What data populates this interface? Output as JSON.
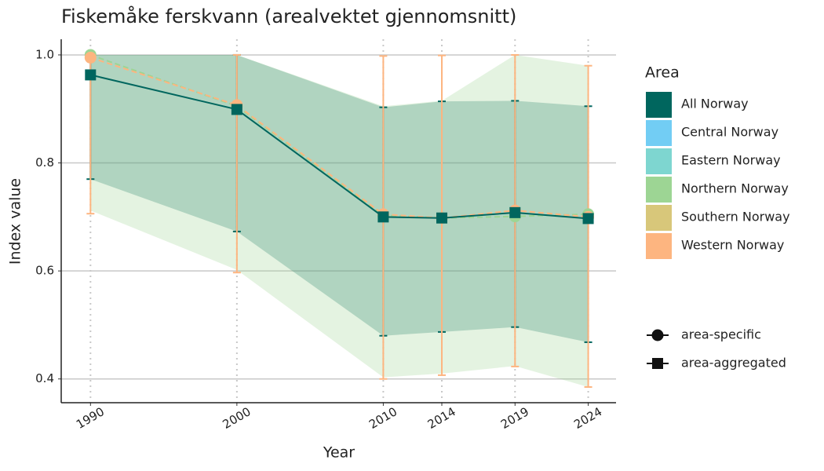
{
  "chart_data": {
    "type": "line",
    "title": "Fiskemåke ferskvann (arealvektet gjennomsnitt)",
    "x_label": "Year",
    "y_label": "Index value",
    "x": [
      1990,
      2000,
      2010,
      2014,
      2019,
      2024
    ],
    "xlim": [
      1988,
      2025.9
    ],
    "xticks": [
      1990,
      2000,
      2010,
      2014,
      2019,
      2024
    ],
    "ylim": [
      0.356,
      1.029
    ],
    "yticks": [
      {
        "value": 0.4,
        "label": "0.4"
      },
      {
        "value": 0.6,
        "label": "0.6"
      },
      {
        "value": 0.8,
        "label": "0.8"
      },
      {
        "value": 1.0,
        "label": "1.0"
      }
    ],
    "grid": true,
    "legend_title": "Area",
    "series": [
      {
        "name": "All Norway",
        "color": "#00665e",
        "shape": "square",
        "dashed": false,
        "ribbon": true,
        "errorbars": true,
        "values": [
          0.963,
          0.899,
          0.7,
          0.698,
          0.708,
          0.697
        ],
        "lower": [
          0.77,
          0.673,
          0.48,
          0.487,
          0.496,
          0.468
        ],
        "upper": [
          1.0,
          1.0,
          0.903,
          0.914,
          0.915,
          0.905
        ]
      },
      {
        "name": "Central Norway",
        "color": "#72cdf4",
        "shape": "circle",
        "dashed": true,
        "ribbon": false,
        "errorbars": false,
        "values": [
          null,
          null,
          null,
          null,
          null,
          null
        ],
        "lower": [
          null,
          null,
          null,
          null,
          null,
          null
        ],
        "upper": [
          null,
          null,
          null,
          null,
          null,
          null
        ]
      },
      {
        "name": "Eastern Norway",
        "color": "#7ed6d0",
        "shape": "circle",
        "dashed": true,
        "ribbon": false,
        "errorbars": false,
        "values": [
          null,
          null,
          null,
          null,
          null,
          null
        ],
        "lower": [
          null,
          null,
          null,
          null,
          null,
          null
        ],
        "upper": [
          null,
          null,
          null,
          null,
          null,
          null
        ]
      },
      {
        "name": "Northern Norway",
        "color": "#9dd594",
        "shape": "circle",
        "dashed": true,
        "ribbon": true,
        "errorbars": false,
        "values": [
          1.0,
          0.905,
          0.703,
          0.698,
          0.701,
          0.705
        ],
        "lower": [
          0.712,
          0.602,
          0.403,
          0.41,
          0.424,
          0.385
        ],
        "upper": [
          1.0,
          1.0,
          0.905,
          0.915,
          1.0,
          0.98
        ]
      },
      {
        "name": "Southern Norway",
        "color": "#d8c77a",
        "shape": "circle",
        "dashed": true,
        "ribbon": false,
        "errorbars": false,
        "values": [
          null,
          null,
          null,
          null,
          null,
          null
        ],
        "lower": [
          null,
          null,
          null,
          null,
          null,
          null
        ],
        "upper": [
          null,
          null,
          null,
          null,
          null,
          null
        ]
      },
      {
        "name": "Western Norway",
        "color": "#fdb580",
        "shape": "circle",
        "dashed": true,
        "ribbon": false,
        "errorbars": true,
        "values": [
          0.995,
          0.907,
          0.705,
          0.698,
          0.712,
          0.7
        ],
        "lower": [
          0.706,
          0.597,
          0.4,
          0.407,
          0.423,
          0.385
        ],
        "upper": [
          1.0,
          1.0,
          0.998,
          0.999,
          1.0,
          0.98
        ]
      }
    ],
    "shape_legend": [
      {
        "label": "area-specific",
        "shape": "circle"
      },
      {
        "label": "area-aggregated",
        "shape": "square"
      }
    ]
  }
}
